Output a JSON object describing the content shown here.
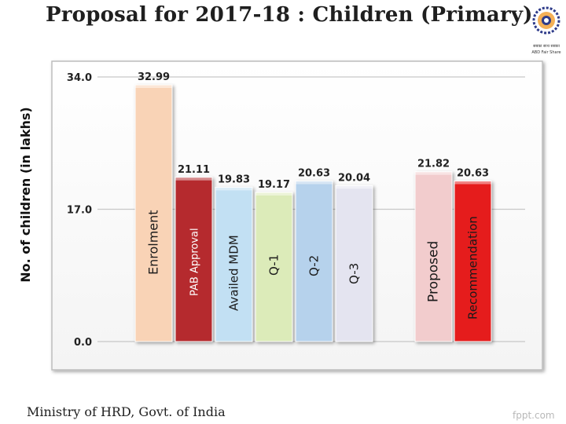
{
  "title": "Proposal for 2017-18 : Children (Primary)",
  "footer": "Ministry of HRD, Govt. of India",
  "watermark": "fppt.com",
  "logo": {
    "name": "ministry-emblem",
    "text_line1": "सबका साथ सबका",
    "text_line2": "ABD Fair Share"
  },
  "chart_data": {
    "type": "bar",
    "title": "",
    "ylabel": "No. of children (in lakhs)",
    "xlabel": "",
    "ylim": [
      0,
      34
    ],
    "yticks": [
      "0.0",
      "17.0",
      "34.0"
    ],
    "ytick_values": [
      0,
      17,
      34
    ],
    "grid": true,
    "legend": "none",
    "categories": [
      "Enrolment",
      "PAB Approval",
      "Availed MDM",
      "Q-1",
      "Q-2",
      "Q-3",
      "Proposed",
      "Recommendation"
    ],
    "values": [
      32.99,
      21.11,
      19.83,
      19.17,
      20.63,
      20.04,
      21.82,
      20.63
    ],
    "value_labels": [
      "32.99",
      "21.11",
      "19.83",
      "19.17",
      "20.63",
      "20.04",
      "21.82",
      "20.63"
    ],
    "colors": [
      "#f9d3b6",
      "#b52a2e",
      "#c2e0f3",
      "#dcebb9",
      "#b6d2ec",
      "#e4e4f0",
      "#f2cccd",
      "#e51f1f"
    ],
    "label_colors": [
      "#1a1a1a",
      "#ffffff",
      "#1a1a1a",
      "#1a1a1a",
      "#1a1a1a",
      "#1a1a1a",
      "#1a1a1a",
      "#1a1a1a"
    ]
  }
}
